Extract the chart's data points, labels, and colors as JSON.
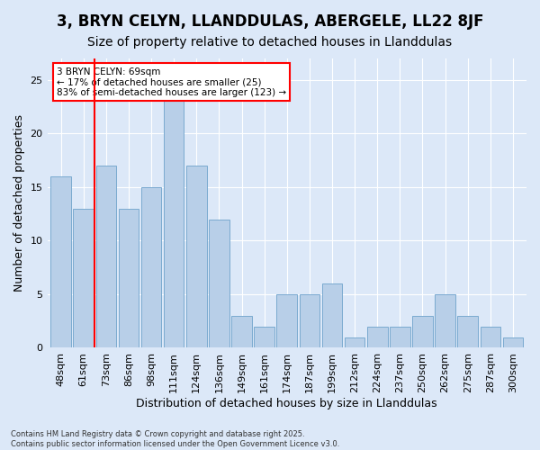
{
  "title1": "3, BRYN CELYN, LLANDDULAS, ABERGELE, LL22 8JF",
  "title2": "Size of property relative to detached houses in Llanddulas",
  "xlabel": "Distribution of detached houses by size in Llanddulas",
  "ylabel": "Number of detached properties",
  "bins": [
    "48sqm",
    "61sqm",
    "73sqm",
    "86sqm",
    "98sqm",
    "111sqm",
    "124sqm",
    "136sqm",
    "149sqm",
    "161sqm",
    "174sqm",
    "187sqm",
    "199sqm",
    "212sqm",
    "224sqm",
    "237sqm",
    "250sqm",
    "262sqm",
    "275sqm",
    "287sqm",
    "300sqm"
  ],
  "values": [
    16,
    13,
    17,
    13,
    15,
    24,
    17,
    12,
    3,
    2,
    5,
    5,
    6,
    1,
    2,
    2,
    3,
    5,
    3,
    2,
    1
  ],
  "bar_color": "#b8cfe8",
  "bar_edge_color": "#7aaad0",
  "vline_x": 1.5,
  "annotation_text": "3 BRYN CELYN: 69sqm\n← 17% of detached houses are smaller (25)\n83% of semi-detached houses are larger (123) →",
  "annotation_box_color": "white",
  "annotation_box_edge": "red",
  "background_color": "#dce8f8",
  "ylim": [
    0,
    27
  ],
  "yticks": [
    0,
    5,
    10,
    15,
    20,
    25
  ],
  "footnote": "Contains HM Land Registry data © Crown copyright and database right 2025.\nContains public sector information licensed under the Open Government Licence v3.0.",
  "title_fontsize": 12,
  "subtitle_fontsize": 10,
  "axis_fontsize": 9,
  "tick_fontsize": 8
}
